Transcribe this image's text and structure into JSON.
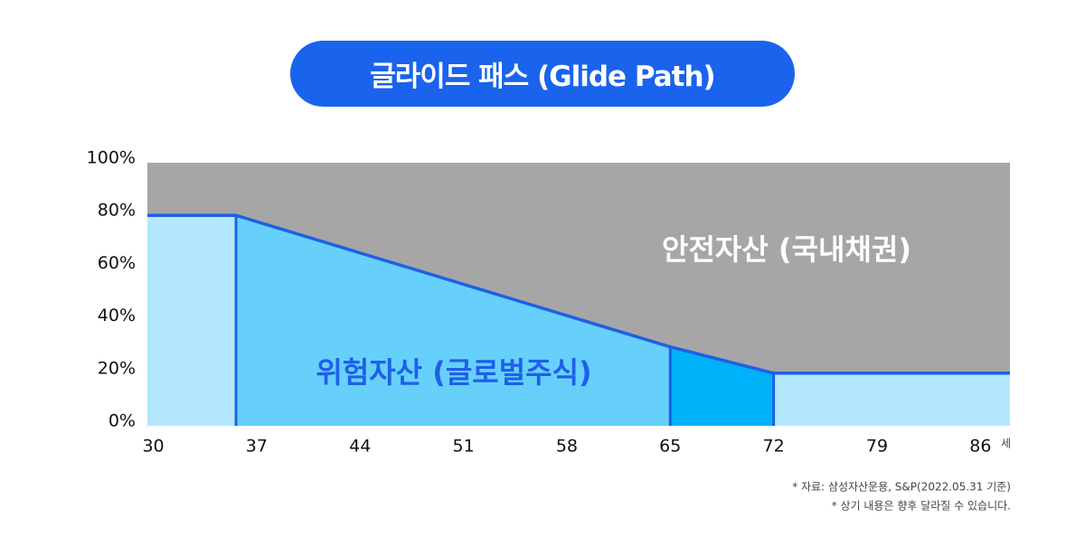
{
  "title": "글라이드 패스 (Glide Path)",
  "chart_data": {
    "type": "area",
    "x": [
      29.6,
      35.6,
      65,
      72,
      88
    ],
    "series": [
      {
        "name": "위험자산 (글로벌주식)",
        "color": "#1f5fe8",
        "values": [
          80,
          80,
          30,
          20,
          20
        ]
      }
    ],
    "segment_colors": [
      "#b3e8fc",
      "#66d0fb",
      "#00b2fa",
      "#b3e8fc"
    ],
    "background_label": "안전자산 (국내채권)",
    "background_color": "#a6a6a6",
    "xlim": [
      29.6,
      88
    ],
    "xticks": [
      30,
      37,
      44,
      51,
      58,
      65,
      72,
      79,
      86
    ],
    "x_unit": "세",
    "ylim": [
      0,
      100
    ],
    "yticks": [
      {
        "value": 0,
        "label": "0%"
      },
      {
        "value": 20,
        "label": "20%"
      },
      {
        "value": 40,
        "label": "40%"
      },
      {
        "value": 60,
        "label": "60%"
      },
      {
        "value": 80,
        "label": "80%"
      },
      {
        "value": 100,
        "label": "100%"
      }
    ]
  },
  "notes": [
    "* 자료: 삼성자산운용, S&P(2022.05.31 기준)",
    "* 상기 내용은 향후 달라질 수 있습니다."
  ]
}
